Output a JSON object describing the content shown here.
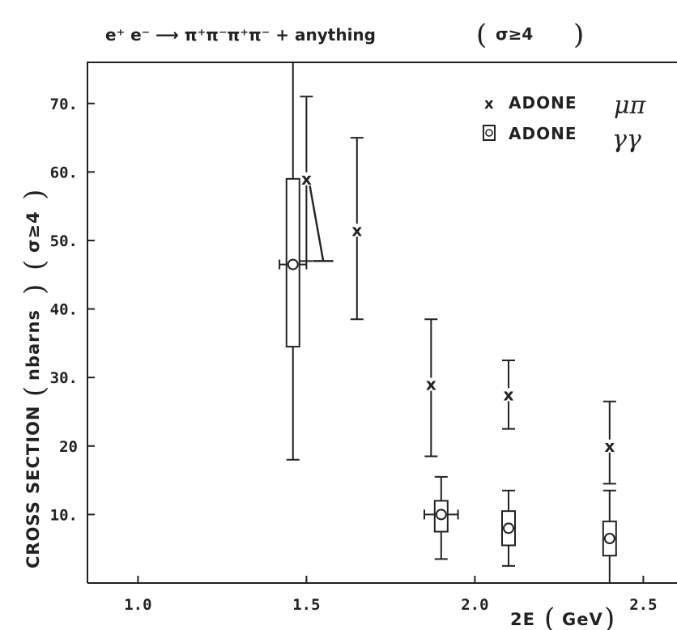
{
  "chart_data": {
    "type": "scatter",
    "title": "e⁺ e⁻ ⟶ π⁺π⁻π⁺π⁻ + anything",
    "title_condition": "σ≥4",
    "xlabel": "2E",
    "xlabel_unit": "GeV",
    "ylabel": "CROSS SECTION",
    "ylabel_unit": "nbarns",
    "ylabel_condition": "σ≥4",
    "xlim": [
      0.85,
      2.6
    ],
    "ylim": [
      0,
      76
    ],
    "x_ticks": [
      1.0,
      1.5,
      2.0,
      2.5
    ],
    "x_tick_labels": [
      "1.0",
      "1.5",
      "2.0",
      "2.5"
    ],
    "y_ticks": [
      10,
      20,
      30,
      40,
      50,
      60,
      70
    ],
    "y_tick_labels": [
      "10.",
      "20",
      "30.",
      "40.",
      "50.",
      "60.",
      "70."
    ],
    "grid": false,
    "legend_position": "top-right",
    "series": [
      {
        "name": "ADONE μπ",
        "legend_prefix": "ADONE",
        "legend_suffix": "μπ",
        "marker": "x",
        "points": [
          {
            "x": 1.5,
            "y": 59,
            "y_low": 47,
            "y_high": 71
          },
          {
            "x": 1.65,
            "y": 51.5,
            "y_low": 38.5,
            "y_high": 65
          },
          {
            "x": 1.87,
            "y": 29,
            "y_low": 18.5,
            "y_high": 38.5
          },
          {
            "x": 2.1,
            "y": 27.5,
            "y_low": 22.5,
            "y_high": 32.5
          },
          {
            "x": 2.4,
            "y": 20,
            "y_low": 14.5,
            "y_high": 26.5
          }
        ]
      },
      {
        "name": "ADONE γγ",
        "legend_prefix": "ADONE",
        "legend_suffix": "γγ",
        "marker": "circle",
        "points": [
          {
            "x": 1.46,
            "y": 46.5,
            "y_low": 18,
            "y_high": 76,
            "box_low": 34.5,
            "box_high": 59,
            "x_low": 1.42,
            "x_high": 1.5
          },
          {
            "x": 1.9,
            "y": 10,
            "y_low": 3.5,
            "y_high": 15.5,
            "box_low": 7.5,
            "box_high": 12,
            "x_low": 1.85,
            "x_high": 1.95
          },
          {
            "x": 2.1,
            "y": 8,
            "y_low": 2.5,
            "y_high": 13.5,
            "box_low": 5.5,
            "box_high": 10.5
          },
          {
            "x": 2.4,
            "y": 6.5,
            "y_low": 0,
            "y_high": 13.5,
            "box_low": 4,
            "box_high": 9
          }
        ]
      }
    ],
    "annotations": [
      {
        "type": "line",
        "from": {
          "x": 1.51,
          "y": 58
        },
        "to": {
          "x": 1.55,
          "y": 47
        }
      },
      {
        "type": "line",
        "from": {
          "x": 1.52,
          "y": 47
        },
        "to": {
          "x": 1.58,
          "y": 47
        }
      }
    ]
  }
}
